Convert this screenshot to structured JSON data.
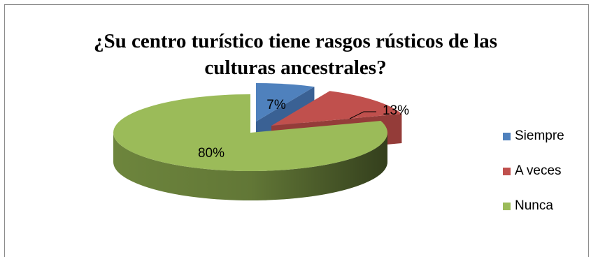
{
  "chart_data": {
    "type": "pie",
    "title_lines": [
      "¿Su centro turístico tiene rasgos rústicos de las",
      "culturas ancestrales?"
    ],
    "categories": [
      "Siempre",
      "A veces",
      "Nunca"
    ],
    "values": [
      7,
      13,
      80
    ],
    "data_labels": [
      "7%",
      "13%",
      "80%"
    ],
    "colors": [
      "#4f81bd",
      "#c0504d",
      "#9bbb59"
    ],
    "side_colors": [
      "#3a6194",
      "#943c39",
      "#738c40"
    ],
    "legend_placement": "right",
    "style": "3d-exploded"
  }
}
